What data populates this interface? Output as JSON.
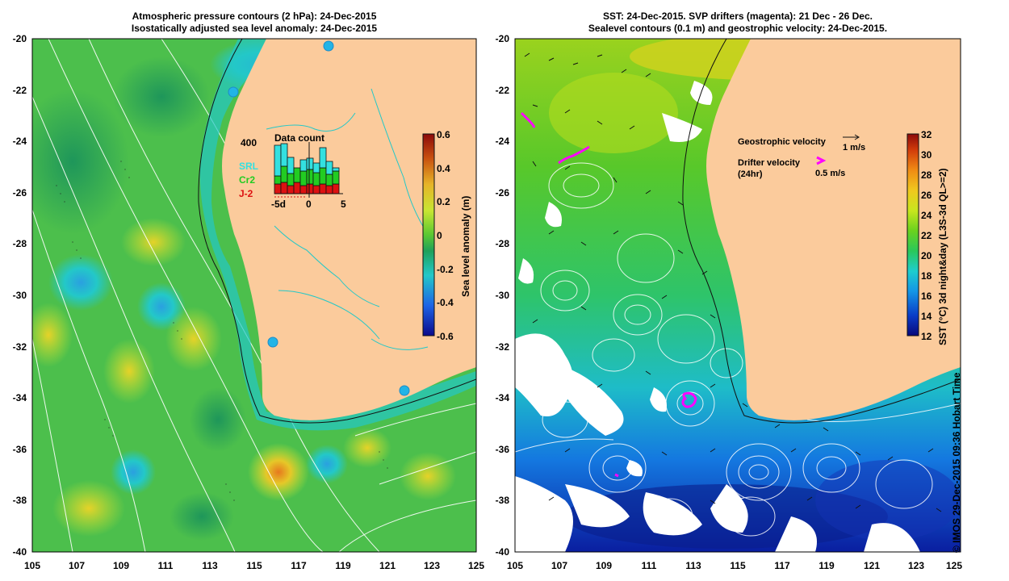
{
  "left_panel": {
    "title_line1": "Atmospheric pressure contours (2 hPa): 24-Dec-2015",
    "title_line2": "Isostatically adjusted sea level anomaly: 24-Dec-2015",
    "inset": {
      "title": "Data count",
      "count_label": "400",
      "legend": [
        "SRL",
        "Cr2",
        "J-2"
      ],
      "legend_colors": [
        "#33e0e0",
        "#22cc22",
        "#dd1111"
      ],
      "x_ticks": [
        "-5d",
        "0",
        "5"
      ]
    },
    "colorbar": {
      "label": "Sea level anomaly (m)",
      "ticks": [
        "0.6",
        "0.4",
        "0.2",
        "0",
        "-0.2",
        "-0.4",
        "-0.6"
      ]
    }
  },
  "right_panel": {
    "title_line1": "SST: 24-Dec-2015. SVP drifters (magenta): 21 Dec - 26 Dec.",
    "title_line2": "Sealevel contours (0.1 m) and geostrophic velocity: 24-Dec-2015.",
    "legend": {
      "geo_label": "Geostrophic velocity",
      "geo_scale": "1 m/s",
      "drifter_label_1": "Drifter velocity",
      "drifter_label_2": "(24hr)",
      "drifter_scale": "0.5 m/s"
    },
    "colorbar": {
      "label": "SST (°C) 3d night&day (L3S-3d QL>=2)",
      "ticks": [
        "32",
        "30",
        "28",
        "26",
        "24",
        "22",
        "20",
        "18",
        "16",
        "14",
        "12"
      ]
    }
  },
  "axes": {
    "y_ticks": [
      "-20",
      "-22",
      "-24",
      "-26",
      "-28",
      "-30",
      "-32",
      "-34",
      "-36",
      "-38",
      "-40"
    ],
    "x_ticks": [
      "105",
      "107",
      "109",
      "111",
      "113",
      "115",
      "117",
      "119",
      "121",
      "123",
      "125"
    ]
  },
  "credit": "© IMOS 29-Dec-2015 09:36 Hobart Time",
  "colors": {
    "land": "#fbcb9c",
    "sla_ramp": [
      "#0a0a8c",
      "#1e64e6",
      "#23c8c8",
      "#1ea05a",
      "#5ac832",
      "#c8e632",
      "#e6b428",
      "#c8500f",
      "#8c0a0a"
    ],
    "sst_ramp": [
      "#08087a",
      "#0a3cc8",
      "#1496e6",
      "#1ecdcd",
      "#2ac85a",
      "#6ad21e",
      "#c8e61e",
      "#f0c81e",
      "#f08c14",
      "#d23c0a",
      "#8c0a0a"
    ],
    "drifter": "#ff00ff"
  }
}
